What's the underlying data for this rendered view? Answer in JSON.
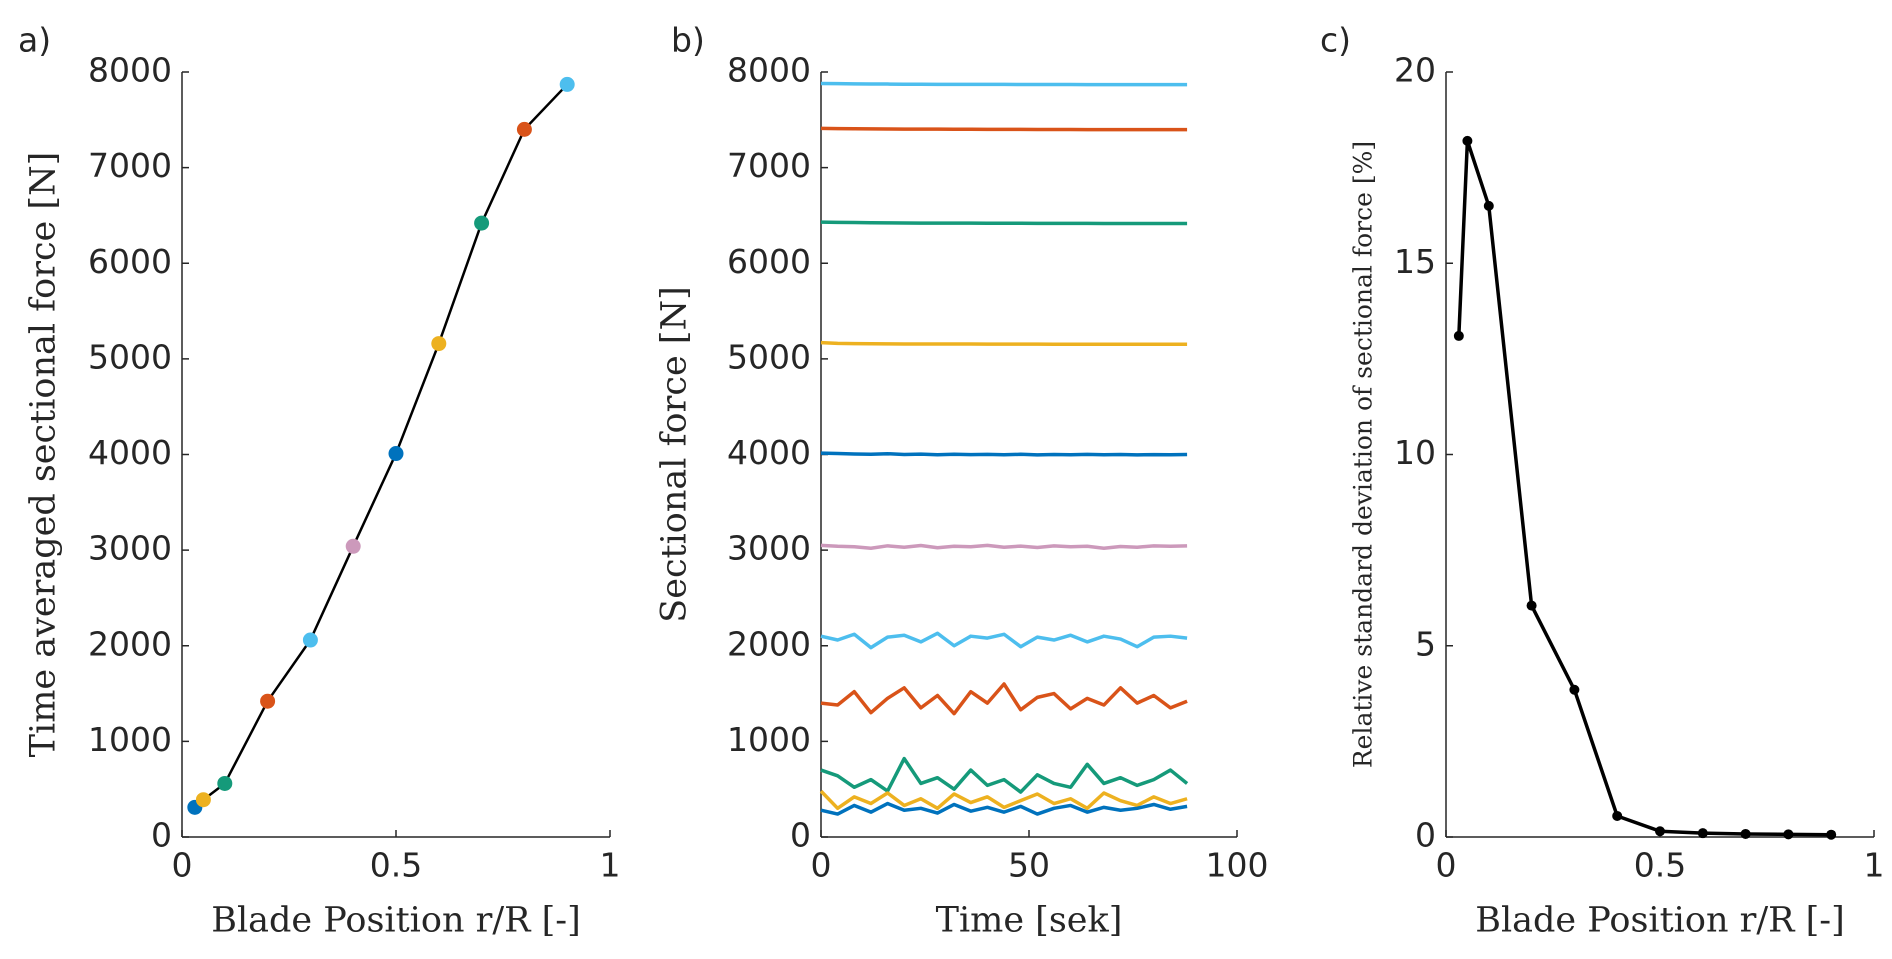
{
  "chart_data": [
    {
      "type": "scatter",
      "panel_label": "a)",
      "x_label": "Blade Position r/R [-]",
      "y_label": "Time averaged sectional force [N]",
      "x": [
        0.03,
        0.05,
        0.1,
        0.2,
        0.3,
        0.4,
        0.5,
        0.6,
        0.7,
        0.8,
        0.9
      ],
      "values": [
        310,
        390,
        560,
        1420,
        2060,
        3040,
        4010,
        5160,
        6420,
        7400,
        7870
      ],
      "point_colors": [
        "#0072BD",
        "#EDB120",
        "#159A7A",
        "#D95319",
        "#4DBEEE",
        "#CC99BB",
        "#0072BD",
        "#EDB120",
        "#159A7A",
        "#D95319",
        "#4DBEEE"
      ],
      "line_color": "#000000",
      "xlim": [
        0,
        1
      ],
      "xticks": [
        0,
        0.5,
        1
      ],
      "ylim": [
        0,
        8000
      ],
      "yticks": [
        0,
        1000,
        2000,
        3000,
        4000,
        5000,
        6000,
        7000,
        8000
      ]
    },
    {
      "type": "line",
      "panel_label": "b)",
      "x_label": "Time [sek]",
      "y_label": "Sectional force [N]",
      "x": [
        0,
        4,
        8,
        12,
        16,
        20,
        24,
        28,
        32,
        36,
        40,
        44,
        48,
        52,
        56,
        60,
        64,
        68,
        72,
        76,
        80,
        84,
        88
      ],
      "series": [
        {
          "color": "#4DBEEE",
          "values": [
            7880,
            7878,
            7876,
            7875,
            7874,
            7872,
            7872,
            7871,
            7871,
            7870,
            7870,
            7870,
            7869,
            7869,
            7869,
            7869,
            7868,
            7868,
            7868,
            7868,
            7868,
            7868,
            7868
          ]
        },
        {
          "color": "#D95319",
          "values": [
            7410,
            7408,
            7406,
            7405,
            7404,
            7403,
            7402,
            7402,
            7401,
            7401,
            7400,
            7400,
            7400,
            7399,
            7399,
            7399,
            7398,
            7398,
            7398,
            7398,
            7398,
            7398,
            7398
          ]
        },
        {
          "color": "#159A7A",
          "values": [
            6430,
            6428,
            6426,
            6424,
            6422,
            6421,
            6420,
            6420,
            6419,
            6419,
            6418,
            6418,
            6418,
            6417,
            6417,
            6417,
            6417,
            6416,
            6416,
            6416,
            6416,
            6416,
            6416
          ]
        },
        {
          "color": "#EDB120",
          "values": [
            5170,
            5162,
            5160,
            5158,
            5157,
            5156,
            5156,
            5155,
            5155,
            5155,
            5154,
            5154,
            5154,
            5154,
            5153,
            5153,
            5153,
            5153,
            5153,
            5153,
            5153,
            5153,
            5153
          ]
        },
        {
          "color": "#0072BD",
          "values": [
            4015,
            4010,
            4005,
            4002,
            4008,
            4000,
            4004,
            3998,
            4003,
            3999,
            4001,
            3997,
            4002,
            3996,
            4000,
            3998,
            4001,
            3997,
            4000,
            3996,
            3999,
            3998,
            4000
          ]
        },
        {
          "color": "#CC99BB",
          "values": [
            3050,
            3040,
            3035,
            3020,
            3045,
            3030,
            3048,
            3025,
            3040,
            3035,
            3050,
            3030,
            3042,
            3028,
            3045,
            3035,
            3040,
            3020,
            3038,
            3030,
            3045,
            3040,
            3045
          ]
        },
        {
          "color": "#4DBEEE",
          "values": [
            2100,
            2060,
            2120,
            1980,
            2090,
            2110,
            2040,
            2130,
            2000,
            2100,
            2080,
            2120,
            1990,
            2090,
            2060,
            2110,
            2040,
            2100,
            2070,
            1990,
            2090,
            2100,
            2080
          ]
        },
        {
          "color": "#D95319",
          "values": [
            1400,
            1380,
            1520,
            1300,
            1450,
            1560,
            1350,
            1480,
            1290,
            1520,
            1400,
            1600,
            1330,
            1460,
            1500,
            1340,
            1450,
            1380,
            1560,
            1400,
            1480,
            1350,
            1420
          ]
        },
        {
          "color": "#159A7A",
          "values": [
            700,
            640,
            520,
            600,
            480,
            820,
            560,
            620,
            500,
            700,
            540,
            600,
            470,
            650,
            560,
            520,
            760,
            560,
            620,
            540,
            600,
            700,
            560
          ]
        },
        {
          "color": "#EDB120",
          "values": [
            480,
            300,
            420,
            350,
            460,
            330,
            400,
            300,
            450,
            360,
            420,
            310,
            380,
            450,
            350,
            400,
            300,
            460,
            380,
            330,
            420,
            350,
            400
          ]
        },
        {
          "color": "#0072BD",
          "values": [
            280,
            240,
            330,
            260,
            350,
            280,
            300,
            250,
            340,
            270,
            310,
            260,
            320,
            240,
            300,
            330,
            260,
            310,
            280,
            300,
            340,
            290,
            320
          ]
        }
      ],
      "xlim": [
        0,
        100
      ],
      "xticks": [
        0,
        50,
        100
      ],
      "ylim": [
        0,
        8000
      ],
      "yticks": [
        0,
        1000,
        2000,
        3000,
        4000,
        5000,
        6000,
        7000,
        8000
      ]
    },
    {
      "type": "line",
      "panel_label": "c)",
      "x_label": "Blade Position r/R [-]",
      "y_label": "Relative standard deviation of sectional force [%]",
      "x": [
        0.03,
        0.05,
        0.1,
        0.2,
        0.3,
        0.4,
        0.5,
        0.6,
        0.7,
        0.8,
        0.9
      ],
      "series": [
        {
          "color": "#000000",
          "marker": true,
          "values": [
            13.1,
            18.2,
            16.5,
            6.05,
            3.85,
            0.55,
            0.15,
            0.1,
            0.08,
            0.07,
            0.06
          ]
        }
      ],
      "xlim": [
        0,
        1
      ],
      "xticks": [
        0,
        0.5,
        1
      ],
      "ylim": [
        0,
        20
      ],
      "yticks": [
        0,
        5,
        10,
        15,
        20
      ]
    }
  ]
}
